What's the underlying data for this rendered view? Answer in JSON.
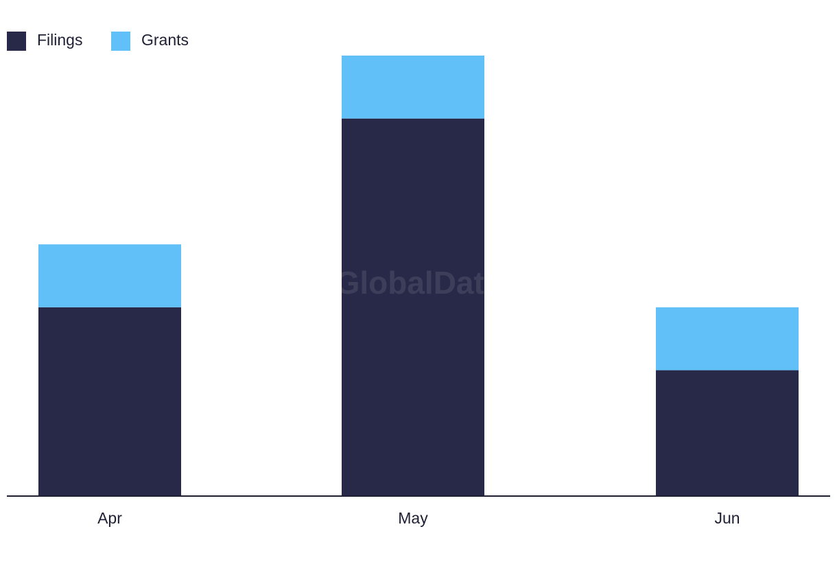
{
  "watermark": "GlobalData",
  "colors": {
    "filings": "#282948",
    "grants": "#62c0f8",
    "axis": "#1f1f33"
  },
  "chart_data": {
    "type": "bar",
    "stacked": true,
    "categories": [
      "Apr",
      "May",
      "Jun"
    ],
    "series": [
      {
        "name": "Filings",
        "values": [
          6,
          12,
          4
        ],
        "color": "#282948"
      },
      {
        "name": "Grants",
        "values": [
          2,
          2,
          2
        ],
        "color": "#62c0f8"
      }
    ],
    "ylim": [
      0,
      14
    ],
    "grid": false,
    "legend": "top-left"
  }
}
